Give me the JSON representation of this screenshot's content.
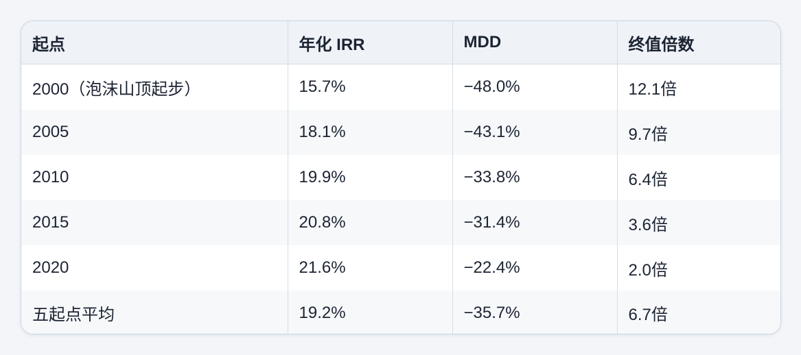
{
  "table": {
    "header": [
      "起点",
      "年化 IRR",
      "MDD",
      "终值倍数"
    ],
    "rows": [
      [
        "2000（泡沫山顶起步）",
        "15.7%",
        "−48.0%",
        "12.1倍"
      ],
      [
        "2005",
        "18.1%",
        "−43.1%",
        "9.7倍"
      ],
      [
        "2010",
        "19.9%",
        "−33.8%",
        "6.4倍"
      ],
      [
        "2015",
        "20.8%",
        "−31.4%",
        "3.6倍"
      ],
      [
        "2020",
        "21.6%",
        "−22.4%",
        "2.0倍"
      ],
      [
        "五起点平均",
        "19.2%",
        "−35.7%",
        "6.7倍"
      ]
    ]
  }
}
